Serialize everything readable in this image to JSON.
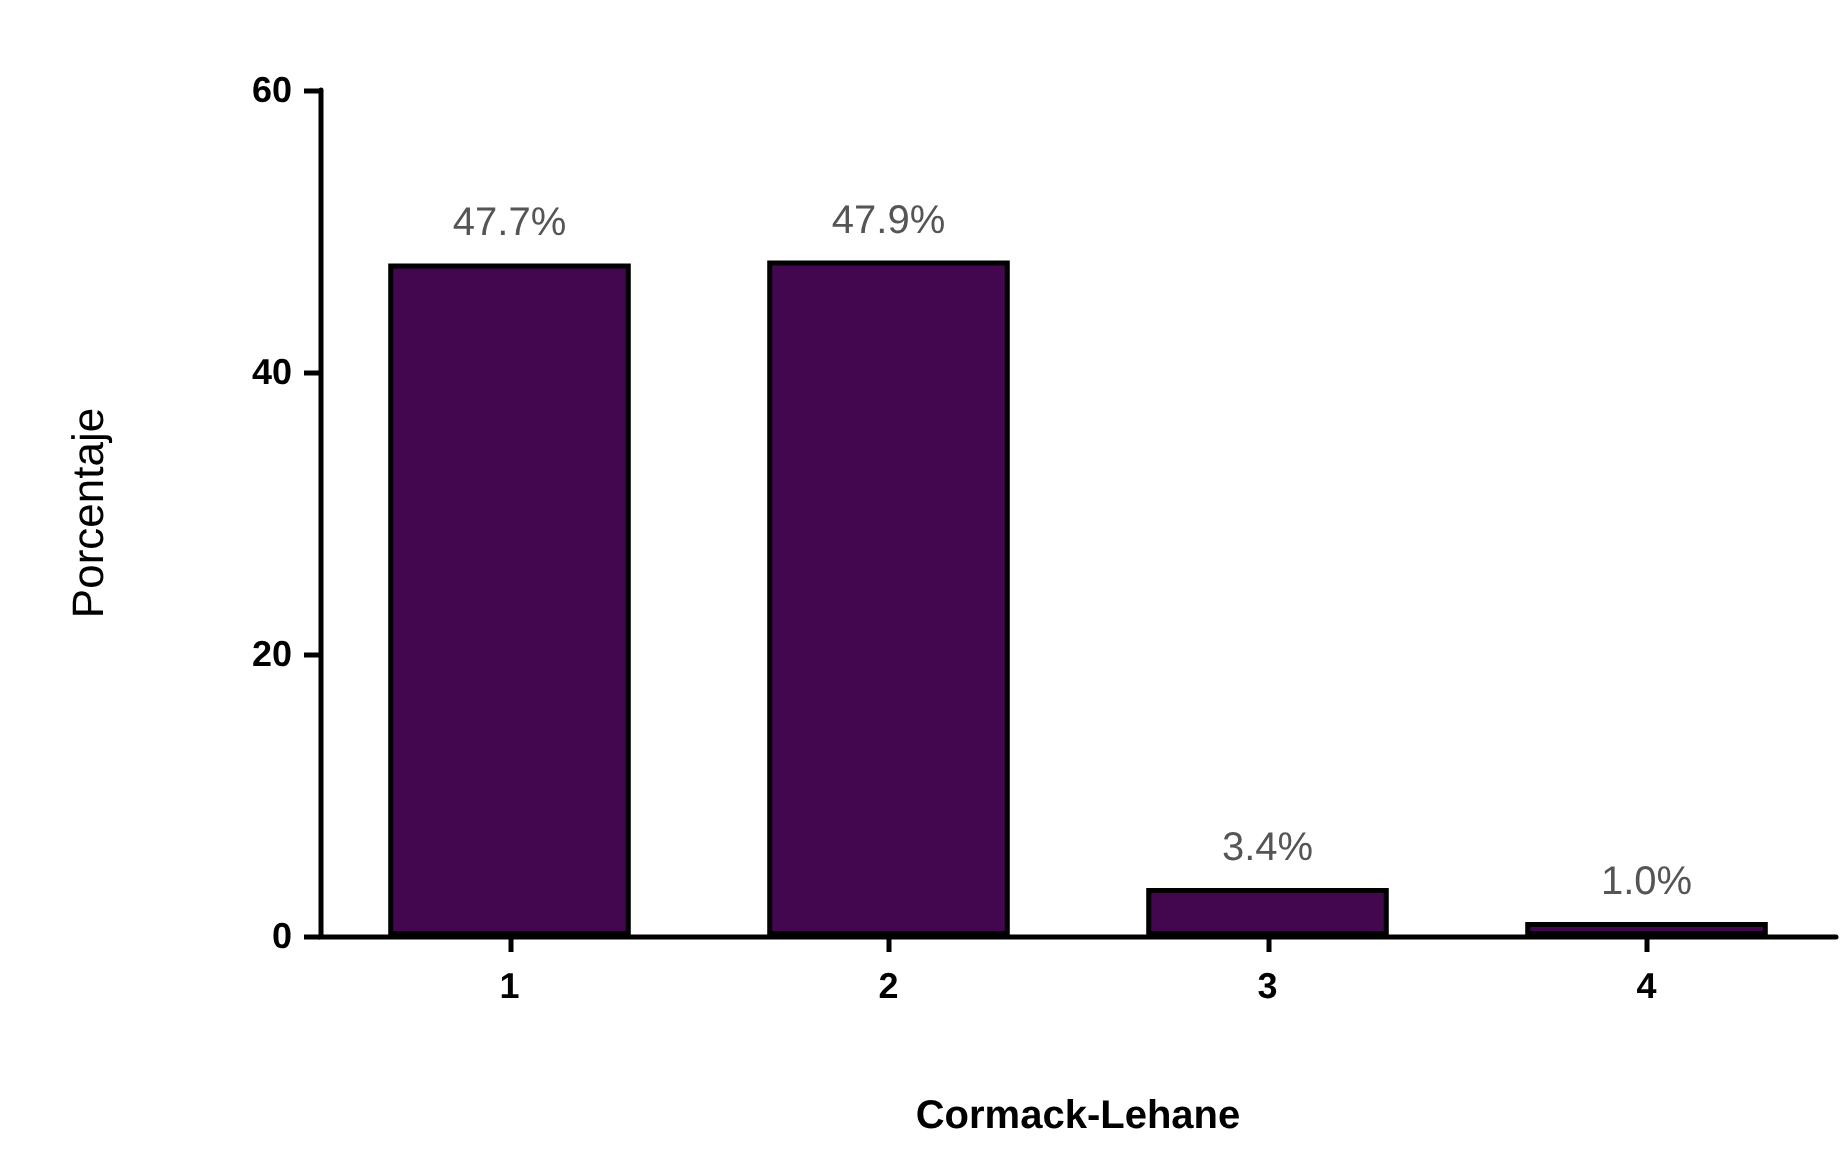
{
  "chart_data": {
    "type": "bar",
    "xlabel": "Cormack-Lehane",
    "ylabel": "Porcentaje",
    "categories": [
      "1",
      "2",
      "3",
      "4"
    ],
    "values": [
      47.7,
      47.9,
      3.4,
      1.0
    ],
    "value_labels": [
      "47.7%",
      "47.9%",
      "3.4%",
      "1.0%"
    ],
    "color": "#43074f",
    "ylim": [
      0,
      60
    ],
    "yticks": [
      0,
      20,
      40,
      60
    ],
    "grid": false
  }
}
